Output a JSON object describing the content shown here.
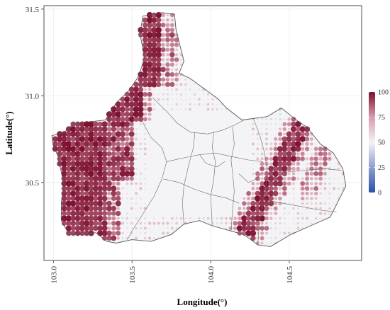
{
  "chart_data": {
    "type": "map",
    "xlabel": "Longitude(°)",
    "ylabel": "Latitude(°)",
    "xlim": [
      102.94,
      104.96
    ],
    "ylim": [
      30.05,
      31.52
    ],
    "x_ticks": [
      103.0,
      103.5,
      104.0,
      104.5
    ],
    "x_tick_labels": [
      "103.0",
      "103.5",
      "104.0",
      "104.5"
    ],
    "y_ticks": [
      30.5,
      31.0,
      31.5
    ],
    "y_tick_labels": [
      "30.5",
      "31.0",
      "31.5"
    ],
    "grid": true,
    "legend": {
      "placement": "right",
      "min": 0,
      "max": 100,
      "ticks": [
        0,
        25,
        50,
        75,
        100
      ],
      "tick_labels": [
        "0",
        "25",
        "50",
        "75",
        "100"
      ],
      "colors": [
        "#2b4fa8",
        "#8e9fcf",
        "#f3f3f6",
        "#d79cab",
        "#7d1030"
      ]
    },
    "grid_step_deg": 0.0286,
    "region_outline": [
      [
        103.57,
        31.46
      ],
      [
        103.69,
        31.48
      ],
      [
        103.77,
        31.47
      ],
      [
        103.78,
        31.38
      ],
      [
        103.83,
        31.2
      ],
      [
        103.8,
        31.13
      ],
      [
        103.87,
        31.1
      ],
      [
        103.96,
        31.04
      ],
      [
        104.05,
        30.98
      ],
      [
        104.1,
        30.93
      ],
      [
        104.2,
        30.86
      ],
      [
        104.36,
        30.88
      ],
      [
        104.45,
        30.93
      ],
      [
        104.53,
        30.87
      ],
      [
        104.61,
        30.82
      ],
      [
        104.7,
        30.72
      ],
      [
        104.78,
        30.67
      ],
      [
        104.84,
        30.58
      ],
      [
        104.86,
        30.48
      ],
      [
        104.76,
        30.3
      ],
      [
        104.61,
        30.24
      ],
      [
        104.51,
        30.2
      ],
      [
        104.38,
        30.13
      ],
      [
        104.3,
        30.14
      ],
      [
        104.21,
        30.2
      ],
      [
        104.13,
        30.22
      ],
      [
        104.01,
        30.25
      ],
      [
        103.93,
        30.28
      ],
      [
        103.83,
        30.26
      ],
      [
        103.75,
        30.2
      ],
      [
        103.62,
        30.16
      ],
      [
        103.5,
        30.17
      ],
      [
        103.4,
        30.15
      ],
      [
        103.34,
        30.16
      ],
      [
        103.27,
        30.21
      ],
      [
        103.17,
        30.2
      ],
      [
        103.1,
        30.2
      ],
      [
        103.05,
        30.28
      ],
      [
        103.05,
        30.39
      ],
      [
        103.07,
        30.48
      ],
      [
        103.05,
        30.56
      ],
      [
        103.03,
        30.65
      ],
      [
        103.0,
        30.71
      ],
      [
        102.99,
        30.77
      ],
      [
        103.07,
        30.79
      ],
      [
        103.13,
        30.84
      ],
      [
        103.23,
        30.85
      ],
      [
        103.33,
        30.86
      ],
      [
        103.4,
        30.96
      ],
      [
        103.48,
        31.03
      ],
      [
        103.54,
        31.11
      ],
      [
        103.58,
        31.22
      ],
      [
        103.55,
        31.36
      ]
    ],
    "district_boundaries": [
      [
        [
          103.63,
          30.99
        ],
        [
          103.72,
          30.91
        ],
        [
          103.79,
          30.84
        ],
        [
          103.87,
          30.79
        ],
        [
          103.98,
          30.78
        ],
        [
          104.07,
          30.8
        ],
        [
          104.15,
          30.83
        ],
        [
          104.21,
          30.86
        ]
      ],
      [
        [
          103.56,
          30.86
        ],
        [
          103.62,
          30.76
        ],
        [
          103.69,
          30.7
        ],
        [
          103.72,
          30.62
        ],
        [
          103.69,
          30.52
        ],
        [
          103.64,
          30.42
        ],
        [
          103.57,
          30.32
        ],
        [
          103.5,
          30.22
        ],
        [
          103.47,
          30.17
        ]
      ],
      [
        [
          103.72,
          30.62
        ],
        [
          103.82,
          30.64
        ],
        [
          103.93,
          30.66
        ],
        [
          104.03,
          30.67
        ],
        [
          104.13,
          30.65
        ],
        [
          104.24,
          30.63
        ],
        [
          104.33,
          30.62
        ]
      ],
      [
        [
          103.9,
          30.79
        ],
        [
          103.89,
          30.7
        ],
        [
          103.86,
          30.6
        ],
        [
          103.83,
          30.48
        ],
        [
          103.82,
          30.38
        ],
        [
          103.83,
          30.26
        ]
      ],
      [
        [
          104.02,
          30.79
        ],
        [
          104.01,
          30.7
        ],
        [
          104.03,
          30.62
        ],
        [
          104.02,
          30.52
        ],
        [
          104.0,
          30.42
        ],
        [
          104.01,
          30.25
        ]
      ],
      [
        [
          104.14,
          30.82
        ],
        [
          104.15,
          30.72
        ],
        [
          104.13,
          30.63
        ],
        [
          104.14,
          30.55
        ],
        [
          104.15,
          30.45
        ],
        [
          104.14,
          30.35
        ],
        [
          104.13,
          30.22
        ]
      ],
      [
        [
          103.7,
          30.52
        ],
        [
          103.8,
          30.5
        ],
        [
          103.9,
          30.46
        ],
        [
          104.0,
          30.43
        ],
        [
          104.1,
          30.41
        ],
        [
          104.18,
          30.38
        ]
      ],
      [
        [
          104.27,
          30.87
        ],
        [
          104.31,
          30.78
        ],
        [
          104.34,
          30.68
        ],
        [
          104.36,
          30.58
        ],
        [
          104.35,
          30.47
        ],
        [
          104.33,
          30.37
        ],
        [
          104.31,
          30.27
        ],
        [
          104.3,
          30.14
        ]
      ],
      [
        [
          104.36,
          30.58
        ],
        [
          104.48,
          30.56
        ],
        [
          104.6,
          30.57
        ],
        [
          104.72,
          30.58
        ],
        [
          104.83,
          30.57
        ]
      ],
      [
        [
          104.34,
          30.4
        ],
        [
          104.46,
          30.38
        ],
        [
          104.58,
          30.36
        ],
        [
          104.7,
          30.34
        ],
        [
          104.8,
          30.33
        ]
      ],
      [
        [
          103.93,
          30.66
        ],
        [
          103.97,
          30.61
        ],
        [
          104.04,
          30.59
        ],
        [
          104.09,
          30.62
        ]
      ],
      [
        [
          104.18,
          30.55
        ],
        [
          104.24,
          30.5
        ],
        [
          104.29,
          30.52
        ],
        [
          104.33,
          30.56
        ]
      ]
    ]
  }
}
